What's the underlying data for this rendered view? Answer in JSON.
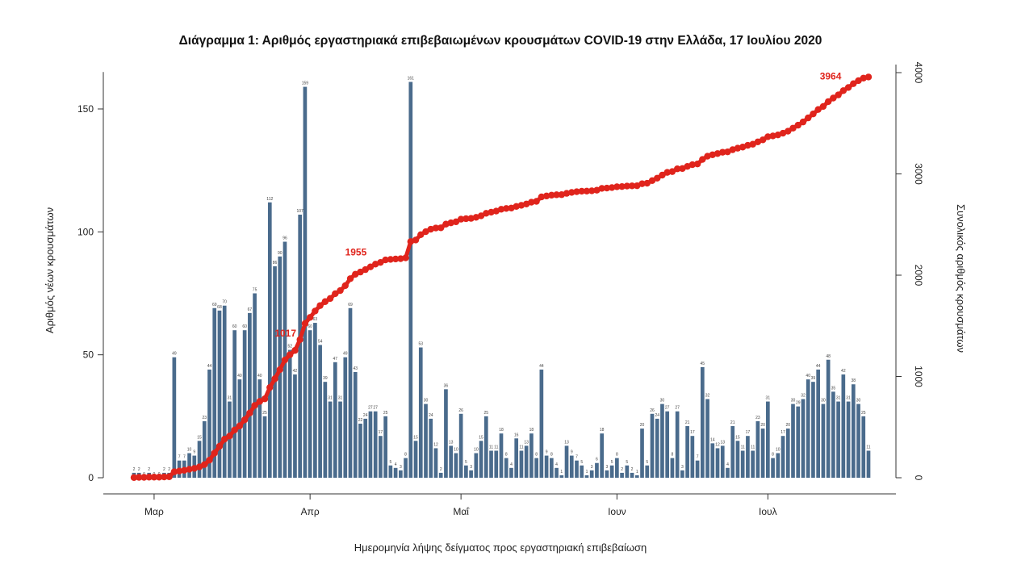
{
  "chart_data": {
    "type": "bar",
    "title": "Διάγραμμα 1: Αριθμός εργαστηριακά επιβεβαιωμένων κρουσμάτων COVID-19 στην Ελλάδα, 17 Ιουλίου 2020",
    "xlabel": "Ημερομηνία λήψης δείγματος προς εργαστηριακή επιβεβαίωση",
    "ylabel": "Αριθμός νέων κρουσμάτων",
    "y2label": "Συνολικός αριθμός κρουσμάτων",
    "start_date": "2020-02-26",
    "x_ticks": [
      {
        "label": "Μαρ",
        "date": "2020-03-01"
      },
      {
        "label": "Απρ",
        "date": "2020-04-01"
      },
      {
        "label": "Μαΐ",
        "date": "2020-05-01"
      },
      {
        "label": "Ιουν",
        "date": "2020-06-01"
      },
      {
        "label": "Ιουλ",
        "date": "2020-07-01"
      }
    ],
    "ylim": [
      0,
      165
    ],
    "y_ticks": [
      0,
      50,
      100,
      150
    ],
    "y2lim": [
      0,
      4000
    ],
    "y2_ticks": [
      0,
      1000,
      2000,
      3000,
      4000
    ],
    "series": [
      {
        "name": "",
        "kind": "bar",
        "color": "#4a6b8c",
        "values": [
          2,
          2,
          0,
          2,
          0,
          0,
          2,
          2,
          49,
          7,
          7,
          10,
          9,
          15,
          23,
          44,
          69,
          68,
          70,
          31,
          60,
          40,
          60,
          67,
          75,
          40,
          25,
          112,
          86,
          90,
          96,
          52,
          42,
          107,
          159,
          60,
          63,
          54,
          39,
          31,
          47,
          31,
          49,
          69,
          43,
          22,
          24,
          27,
          27,
          17,
          25,
          5,
          4,
          3,
          8,
          161,
          15,
          53,
          30,
          24,
          12,
          2,
          36,
          13,
          10,
          26,
          5,
          3,
          10,
          15,
          25,
          11,
          11,
          18,
          8,
          4,
          16,
          11,
          13,
          18,
          8,
          44,
          9,
          8,
          4,
          1,
          13,
          9,
          7,
          5,
          1,
          3,
          6,
          18,
          3,
          5,
          8,
          2,
          5,
          2,
          1,
          20,
          5,
          26,
          24,
          30,
          27,
          8,
          27,
          3,
          21,
          17,
          7,
          45,
          32,
          14,
          12,
          13,
          4,
          21,
          15,
          11,
          17,
          11,
          23,
          20,
          31,
          8,
          10,
          17,
          20,
          30,
          29,
          32,
          40,
          39,
          44,
          30,
          48,
          35,
          31,
          42,
          31,
          38,
          30,
          25,
          11
        ]
      },
      {
        "name": "",
        "kind": "cumulative",
        "color": "#e0241c"
      }
    ],
    "annotations": [
      {
        "text": "1017",
        "day": 33
      },
      {
        "text": "1955",
        "day": 47
      },
      {
        "text": "3964",
        "day": 142
      }
    ]
  }
}
